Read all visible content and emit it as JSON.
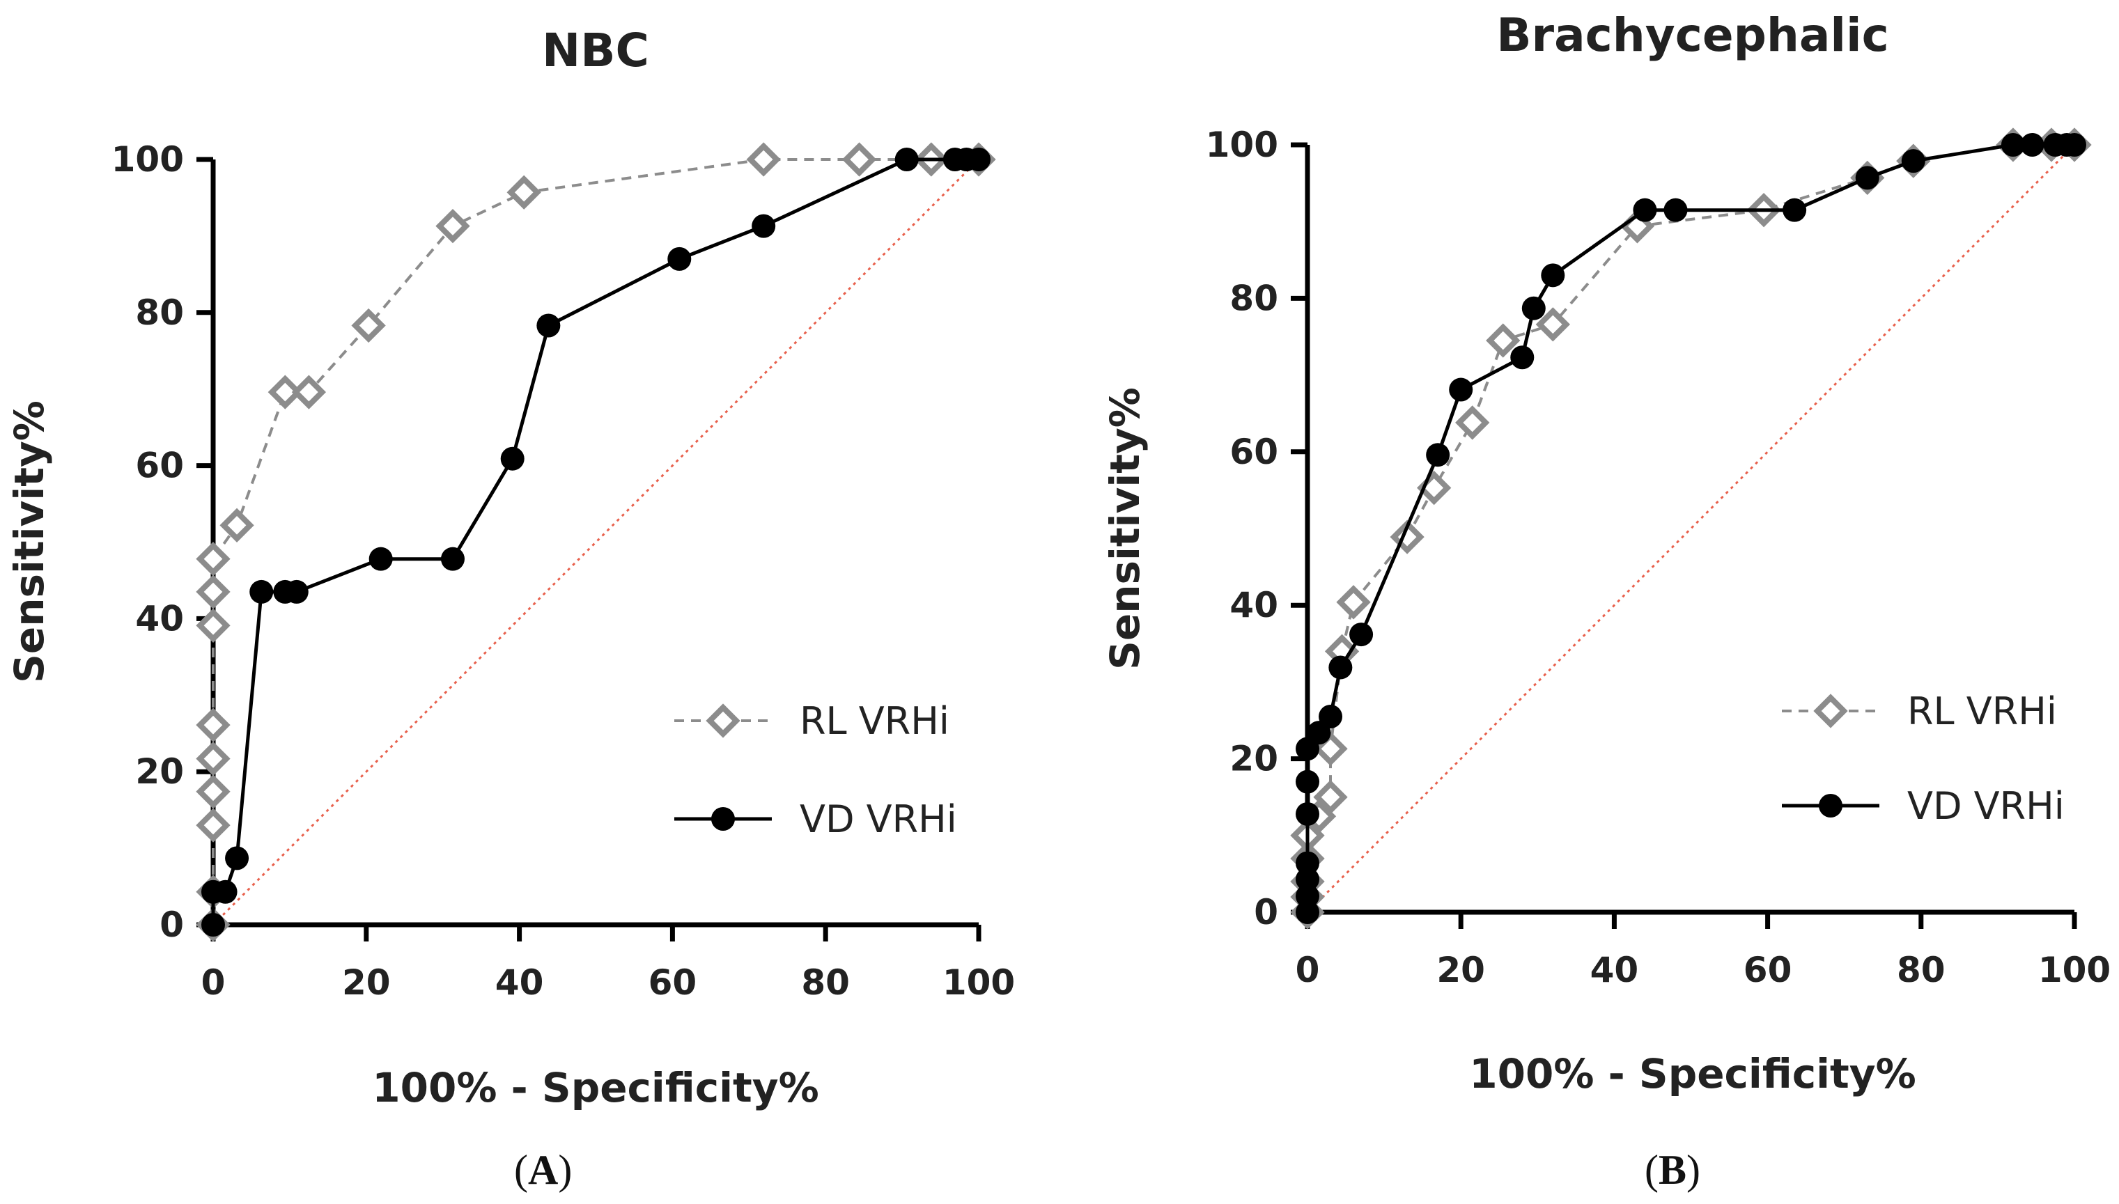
{
  "chart_data": [
    {
      "type": "line",
      "panel_label": "A",
      "title": "NBC",
      "xlabel": "100% - Specificity%",
      "ylabel": "Sensitivity%",
      "xlim": [
        0,
        100
      ],
      "ylim": [
        0,
        100
      ],
      "xticks": [
        0,
        20,
        40,
        60,
        80,
        100
      ],
      "yticks": [
        0,
        20,
        40,
        60,
        80,
        100
      ],
      "tick_labels_x": [
        "0",
        "20",
        "40",
        "60",
        "80",
        "100"
      ],
      "tick_labels_y": [
        "0",
        "20",
        "40",
        "60",
        "80",
        "100"
      ],
      "legend_position": "lower-right",
      "reference_line": {
        "from": [
          0,
          0
        ],
        "to": [
          100,
          100
        ],
        "color": "#e8604c",
        "style": "dotted"
      },
      "series": [
        {
          "name": "RL VRHi",
          "color": "#8c8c8c",
          "marker": "diamond-open",
          "line_style": "dashed",
          "x": [
            0,
            0,
            0,
            0,
            0,
            0,
            0,
            0,
            0,
            3.1,
            9.4,
            12.5,
            20.3,
            31.3,
            40.6,
            71.9,
            84.4,
            93.8,
            100
          ],
          "y": [
            0,
            4.3,
            13,
            17.4,
            21.7,
            26.1,
            39.1,
            43.5,
            47.8,
            52.2,
            69.6,
            69.6,
            78.3,
            91.3,
            95.7,
            100,
            100,
            100,
            100
          ]
        },
        {
          "name": "VD VRHi",
          "color": "#000000",
          "marker": "circle-filled",
          "line_style": "solid",
          "x": [
            0,
            0,
            1.6,
            3.1,
            6.3,
            9.4,
            10.9,
            21.9,
            31.3,
            39.1,
            43.8,
            60.9,
            71.9,
            90.6,
            96.9,
            98.4,
            100
          ],
          "y": [
            0,
            4.3,
            4.3,
            8.7,
            43.5,
            43.5,
            43.5,
            47.8,
            47.8,
            60.9,
            78.3,
            87,
            91.3,
            100,
            100,
            100,
            100
          ]
        }
      ]
    },
    {
      "type": "line",
      "panel_label": "B",
      "title": "Brachycephalic",
      "xlabel": "100% - Specificity%",
      "ylabel": "Sensitivity%",
      "xlim": [
        0,
        100
      ],
      "ylim": [
        0,
        100
      ],
      "xticks": [
        0,
        20,
        40,
        60,
        80,
        100
      ],
      "yticks": [
        0,
        20,
        40,
        60,
        80,
        100
      ],
      "tick_labels_x": [
        "0",
        "20",
        "40",
        "60",
        "80",
        "100"
      ],
      "tick_labels_y": [
        "0",
        "20",
        "40",
        "60",
        "80",
        "100"
      ],
      "legend_position": "lower-right",
      "reference_line": {
        "from": [
          0,
          0
        ],
        "to": [
          100,
          100
        ],
        "color": "#e8604c",
        "style": "dotted"
      },
      "series": [
        {
          "name": "RL VRHi",
          "color": "#8c8c8c",
          "marker": "diamond-open",
          "line_style": "dashed",
          "x": [
            0,
            0,
            0,
            0,
            0,
            1.5,
            3,
            3,
            4.5,
            6,
            13,
            16.5,
            21.5,
            25.5,
            32,
            43,
            59.5,
            73,
            79,
            92,
            97,
            100
          ],
          "y": [
            0,
            2,
            4,
            7,
            10,
            12.5,
            15,
            21.3,
            34,
            40.4,
            48.9,
            55.3,
            63.8,
            74.5,
            76.6,
            89.4,
            91.5,
            95.7,
            97.9,
            100,
            100,
            100
          ]
        },
        {
          "name": "VD VRHi",
          "color": "#000000",
          "marker": "circle-filled",
          "line_style": "solid",
          "x": [
            0,
            0,
            0,
            0,
            0,
            0,
            0,
            1.5,
            3,
            4.3,
            7,
            17,
            20,
            28,
            29.5,
            32,
            44,
            48,
            63.5,
            73,
            79,
            92,
            94.5,
            97.5,
            99,
            100
          ],
          "y": [
            0,
            2.1,
            4.3,
            6.4,
            12.8,
            17,
            21.3,
            23.4,
            25.5,
            31.9,
            36.2,
            59.6,
            68.1,
            72.3,
            78.7,
            83,
            91.5,
            91.5,
            91.5,
            95.7,
            97.9,
            100,
            100,
            100,
            100,
            100
          ]
        }
      ]
    }
  ]
}
